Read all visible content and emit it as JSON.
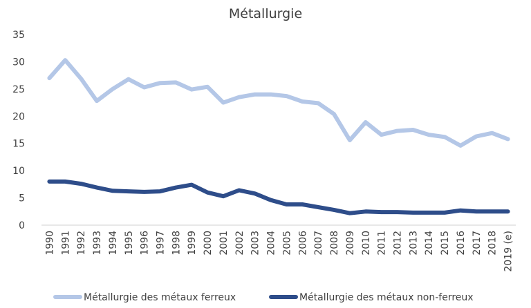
{
  "chart_data": {
    "type": "line",
    "title": "Métallurgie",
    "xlabel": "",
    "ylabel": "",
    "ylim": [
      0,
      35
    ],
    "yticks": [
      0,
      5,
      10,
      15,
      20,
      25,
      30,
      35
    ],
    "grid": false,
    "legend_position": "bottom",
    "categories": [
      "1990",
      "1991",
      "1992",
      "1993",
      "1994",
      "1995",
      "1996",
      "1997",
      "1998",
      "1999",
      "2000",
      "2001",
      "2002",
      "2003",
      "2004",
      "2005",
      "2006",
      "2007",
      "2008",
      "2009",
      "2010",
      "2011",
      "2012",
      "2013",
      "2014",
      "2015",
      "2016",
      "2017",
      "2018",
      "2019 (e)"
    ],
    "series": [
      {
        "name": "Métallurgie des métaux ferreux",
        "color": "#b4c7e7",
        "values": [
          27.0,
          30.3,
          26.9,
          22.8,
          25.0,
          26.8,
          25.3,
          26.1,
          26.2,
          24.9,
          25.4,
          22.5,
          23.5,
          24.0,
          24.0,
          23.7,
          22.7,
          22.4,
          20.4,
          15.6,
          18.9,
          16.6,
          17.3,
          17.5,
          16.6,
          16.2,
          14.6,
          16.3,
          16.9,
          15.8
        ]
      },
      {
        "name": "Métallurgie des métaux non-ferreux",
        "color": "#2e4d8a",
        "values": [
          8.0,
          8.0,
          7.6,
          6.9,
          6.3,
          6.2,
          6.1,
          6.2,
          6.9,
          7.4,
          6.0,
          5.3,
          6.4,
          5.8,
          4.6,
          3.8,
          3.8,
          3.3,
          2.8,
          2.2,
          2.5,
          2.4,
          2.4,
          2.3,
          2.3,
          2.3,
          2.7,
          2.5,
          2.5,
          2.5
        ]
      }
    ]
  }
}
